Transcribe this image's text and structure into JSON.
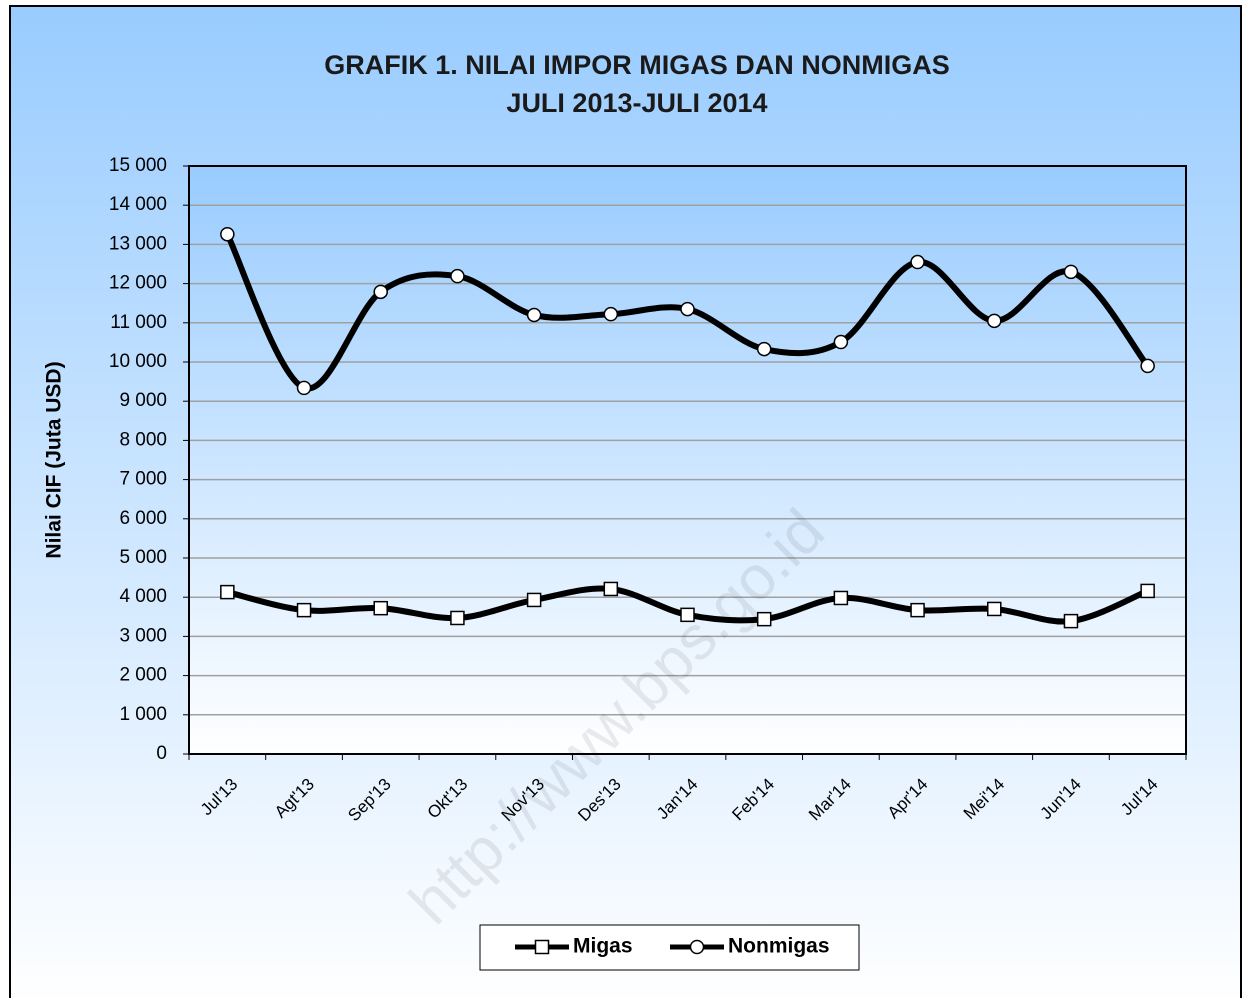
{
  "chart_data": {
    "type": "line",
    "title": [
      "GRAFIK 1. NILAI IMPOR MIGAS DAN NONMIGAS",
      "JULI 2013-JULI 2014"
    ],
    "y_label": "Nilai CIF (Juta USD)",
    "annotation": "http://www.bps.go.id",
    "categories": [
      "Jul'13",
      "Agt'13",
      "Sep'13",
      "Okt'13",
      "Nov'13",
      "Des'13",
      "Jan'14",
      "Feb'14",
      "Mar'14",
      "Apr'14",
      "Mei'14",
      "Jun'14",
      "Jul'14"
    ],
    "series": [
      {
        "name": "Migas",
        "color": "#000000",
        "marker": "square",
        "values": [
          4130,
          3670,
          3720,
          3470,
          3930,
          4210,
          3550,
          3440,
          3980,
          3670,
          3700,
          3390,
          4160
        ]
      },
      {
        "name": "Nonmigas",
        "color": "#000000",
        "marker": "circle",
        "values": [
          13260,
          9340,
          11790,
          12190,
          11200,
          11220,
          11350,
          10330,
          10510,
          12550,
          11050,
          12300,
          9900
        ]
      }
    ],
    "ylim": [
      0,
      15000
    ],
    "yticks": [
      0,
      {
        "value": 1000,
        "label": "1 000"
      },
      {
        "value": 2000,
        "label": "2 000"
      },
      {
        "value": 3000,
        "label": "3 000"
      },
      {
        "value": 4000,
        "label": "4 000"
      },
      {
        "value": 5000,
        "label": "5 000"
      },
      {
        "value": 6000,
        "label": "6 000"
      },
      {
        "value": 7000,
        "label": "7 000"
      },
      {
        "value": 8000,
        "label": "8 000"
      },
      {
        "value": 9000,
        "label": "9 000"
      },
      {
        "value": 10000,
        "label": "10 000"
      },
      {
        "value": 11000,
        "label": "11 000"
      },
      {
        "value": 12000,
        "label": "12 000"
      },
      {
        "value": 13000,
        "label": "13 000"
      },
      {
        "value": 14000,
        "label": "14 000"
      },
      {
        "value": 15000,
        "label": "15 000"
      }
    ],
    "grid": true,
    "smooth": true,
    "legend": "bottom"
  }
}
